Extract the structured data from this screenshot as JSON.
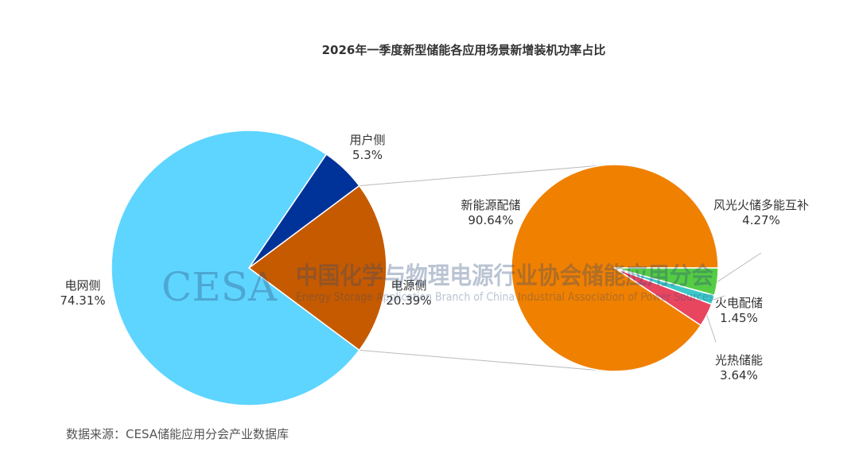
{
  "chart_data": [
    {
      "type": "pie",
      "title": "2026年一季度新型储能各应用场景新增装机功率占比",
      "slices": [
        {
          "label": "用户侧",
          "value": 5.3,
          "value_text": "5.3%",
          "color": "#003399"
        },
        {
          "label": "电源侧",
          "value": 20.39,
          "value_text": "20.39%",
          "color": "#c55a00"
        },
        {
          "label": "电网侧",
          "value": 74.31,
          "value_text": "74.31%",
          "color": "#5ed5ff"
        }
      ]
    },
    {
      "type": "pie",
      "breakdown_of": "电源侧",
      "slices": [
        {
          "label": "新能源配储",
          "value": 90.64,
          "value_text": "90.64%",
          "color": "#f08000"
        },
        {
          "label": "风光火储多能互补",
          "value": 4.27,
          "value_text": "4.27%",
          "color": "#55cc44"
        },
        {
          "label": "火电配储",
          "value": 1.45,
          "value_text": "1.45%",
          "color": "#3cc8c8"
        },
        {
          "label": "光热储能",
          "value": 3.64,
          "value_text": "3.64%",
          "color": "#e8455f"
        }
      ]
    }
  ],
  "source": "数据来源：CESA储能应用分会产业数据库",
  "watermark": {
    "logo": "CESA",
    "name_cn": "中国化学与物理电源行业协会储能应用分会",
    "name_en": "Energy Storage Application Branch of China Industrial Association of Power Sources"
  }
}
